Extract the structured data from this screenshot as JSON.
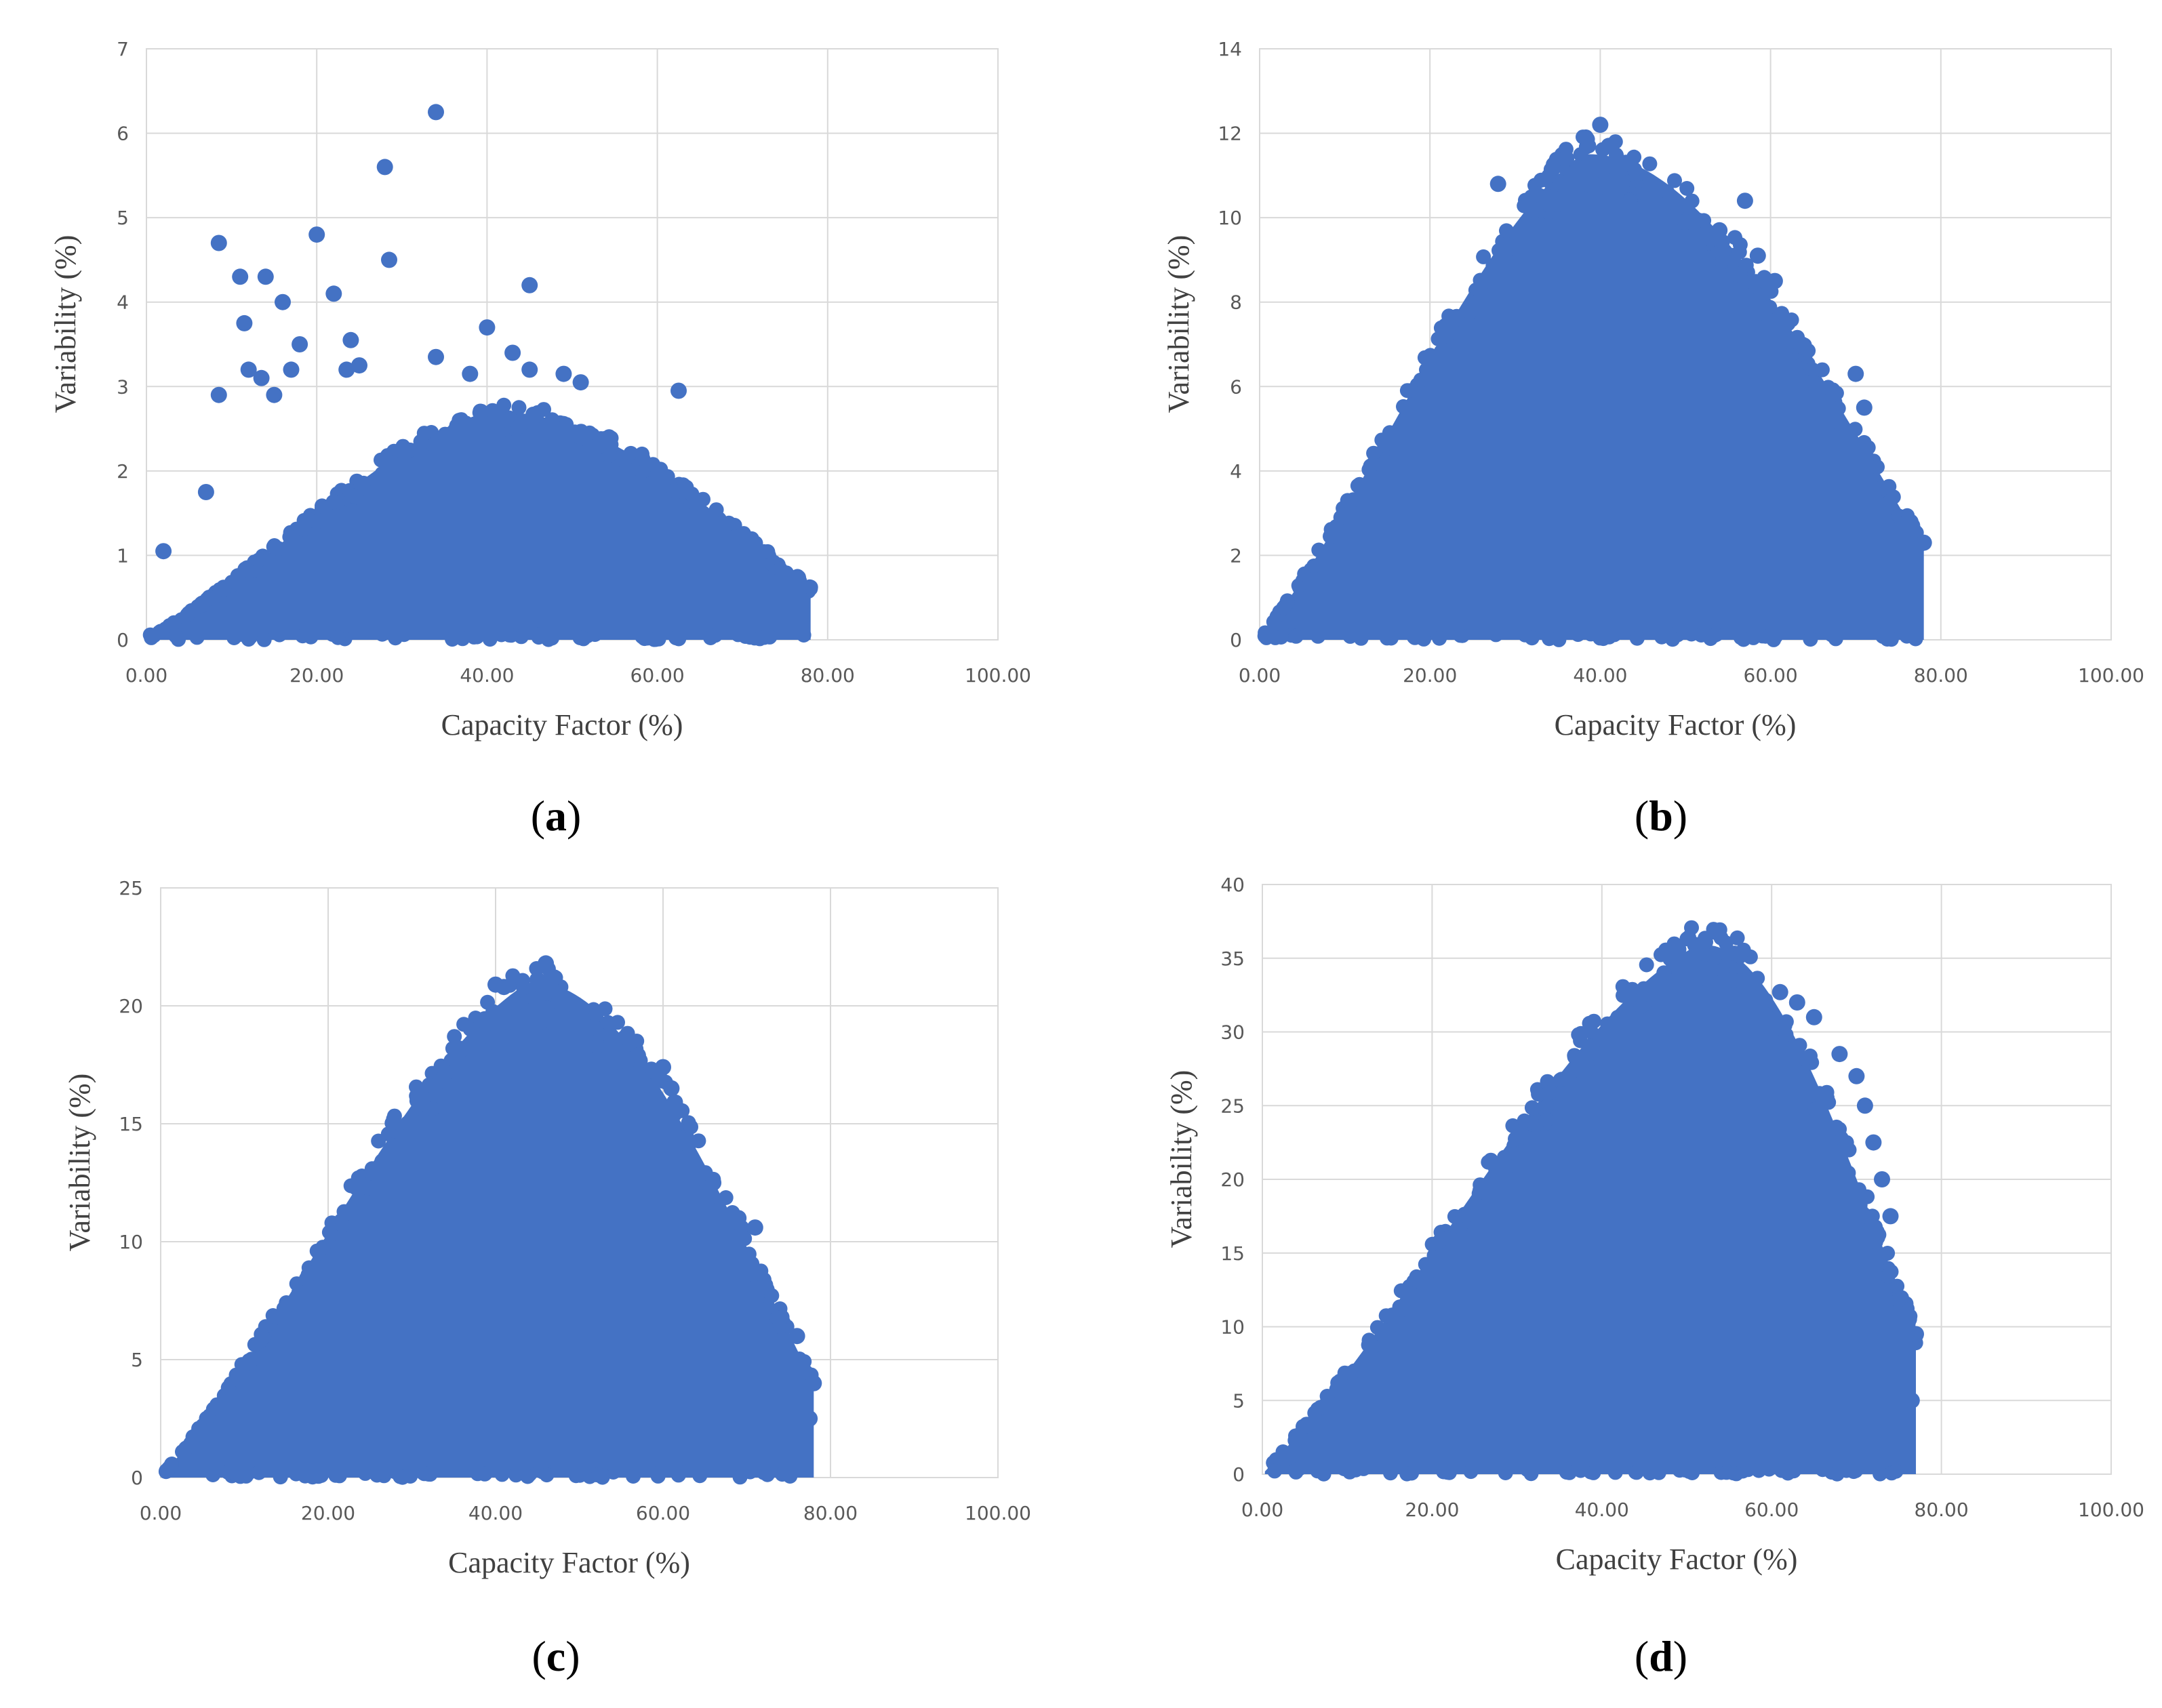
{
  "figure": {
    "panels": [
      "a",
      "b",
      "c",
      "d"
    ],
    "colors": {
      "marker": "#4472C4",
      "grid": "#D9D9D9",
      "tick_text": "#595959",
      "title_text": "#404040"
    }
  },
  "chart_data": [
    {
      "panel": "a",
      "type": "scatter",
      "xlabel": "Capacity Factor (%)",
      "ylabel": "Variability (%)",
      "xlim": [
        0,
        100
      ],
      "ylim": [
        0,
        7
      ],
      "xticks": [
        "0.00",
        "20.00",
        "40.00",
        "60.00",
        "80.00",
        "100.00"
      ],
      "yticks": [
        "0",
        "1",
        "2",
        "3",
        "4",
        "5",
        "6",
        "7"
      ],
      "grid": true,
      "envelope": {
        "peak_x": 40,
        "peak_y": 2.7,
        "right_x": 78,
        "tail_y": 0.6
      },
      "outliers": [
        [
          34,
          6.25
        ],
        [
          28,
          5.6
        ],
        [
          28.5,
          4.5
        ],
        [
          20,
          4.8
        ],
        [
          8.5,
          4.7
        ],
        [
          11,
          4.3
        ],
        [
          14,
          4.3
        ],
        [
          45,
          4.2
        ],
        [
          16,
          4.0
        ],
        [
          22,
          4.1
        ],
        [
          11.5,
          3.75
        ],
        [
          40,
          3.7
        ],
        [
          18,
          3.5
        ],
        [
          24,
          3.55
        ],
        [
          43,
          3.4
        ],
        [
          34,
          3.35
        ],
        [
          13.5,
          3.1
        ],
        [
          17,
          3.2
        ],
        [
          25,
          3.25
        ],
        [
          38,
          3.15
        ],
        [
          45,
          3.2
        ],
        [
          49,
          3.15
        ],
        [
          51,
          3.05
        ],
        [
          62.5,
          2.95
        ],
        [
          8.5,
          2.9
        ],
        [
          15,
          2.9
        ],
        [
          12,
          3.2
        ],
        [
          23.5,
          3.2
        ],
        [
          7,
          1.75
        ],
        [
          2,
          1.05
        ]
      ]
    },
    {
      "panel": "b",
      "type": "scatter",
      "xlabel": "Capacity Factor (%)",
      "ylabel": "Variability (%)",
      "xlim": [
        0,
        100
      ],
      "ylim": [
        0,
        14
      ],
      "xticks": [
        "0.00",
        "20.00",
        "40.00",
        "60.00",
        "80.00",
        "100.00"
      ],
      "yticks": [
        "0",
        "2",
        "4",
        "6",
        "8",
        "10",
        "12",
        "14"
      ],
      "grid": true,
      "envelope": {
        "peak_x": 38,
        "peak_y": 11.5,
        "right_x": 78,
        "tail_y": 2.2
      },
      "outliers": [
        [
          40,
          12.2
        ],
        [
          41,
          11.7
        ],
        [
          36,
          11.4
        ],
        [
          43,
          11.3
        ],
        [
          57,
          10.4
        ],
        [
          28,
          10.8
        ],
        [
          50,
          9.9
        ],
        [
          54,
          9.7
        ],
        [
          58.5,
          9.1
        ],
        [
          60.5,
          8.5
        ],
        [
          62,
          7.5
        ],
        [
          70,
          6.3
        ],
        [
          71,
          5.5
        ],
        [
          78,
          2.3
        ],
        [
          77,
          2.0
        ]
      ]
    },
    {
      "panel": "c",
      "type": "scatter",
      "xlabel": "Capacity Factor (%)",
      "ylabel": "Variability (%)",
      "xlim": [
        0,
        100
      ],
      "ylim": [
        0,
        25
      ],
      "xticks": [
        "0.00",
        "20.00",
        "40.00",
        "60.00",
        "80.00",
        "100.00"
      ],
      "yticks": [
        "0",
        "5",
        "10",
        "15",
        "20",
        "25"
      ],
      "grid": true,
      "envelope": {
        "peak_x": 44,
        "peak_y": 21,
        "right_x": 78,
        "tail_y": 4.0
      },
      "outliers": [
        [
          46,
          21.8
        ],
        [
          47,
          21.2
        ],
        [
          45,
          21.1
        ],
        [
          40,
          20.9
        ],
        [
          41,
          20.8
        ],
        [
          57,
          17.9
        ],
        [
          60,
          17.4
        ],
        [
          61,
          16.5
        ],
        [
          63,
          14.1
        ],
        [
          66,
          12.5
        ],
        [
          69,
          11.0
        ],
        [
          71,
          10.6
        ],
        [
          76,
          6.0
        ],
        [
          78,
          4.0
        ],
        [
          77.5,
          2.5
        ]
      ]
    },
    {
      "panel": "d",
      "type": "scatter",
      "xlabel": "Capacity Factor (%)",
      "ylabel": "Variability (%)",
      "xlim": [
        0,
        100
      ],
      "ylim": [
        0,
        40
      ],
      "xticks": [
        "0.00",
        "20.00",
        "40.00",
        "60.00",
        "80.00",
        "100.00"
      ],
      "yticks": [
        "0",
        "5",
        "10",
        "15",
        "20",
        "25",
        "30",
        "35",
        "40"
      ],
      "grid": true,
      "envelope": {
        "peak_x": 51,
        "peak_y": 35.8,
        "right_x": 77,
        "tail_y": 9.5
      },
      "outliers": [
        [
          51,
          35.9
        ],
        [
          49,
          35.6
        ],
        [
          52,
          34.3
        ],
        [
          61,
          32.7
        ],
        [
          63,
          32.0
        ],
        [
          65,
          31.0
        ],
        [
          68,
          28.5
        ],
        [
          70,
          27.0
        ],
        [
          71,
          25.0
        ],
        [
          72,
          22.5
        ],
        [
          73,
          20.0
        ],
        [
          74,
          17.5
        ],
        [
          76,
          10.0
        ],
        [
          77,
          9.5
        ],
        [
          76.5,
          5.0
        ]
      ]
    }
  ]
}
